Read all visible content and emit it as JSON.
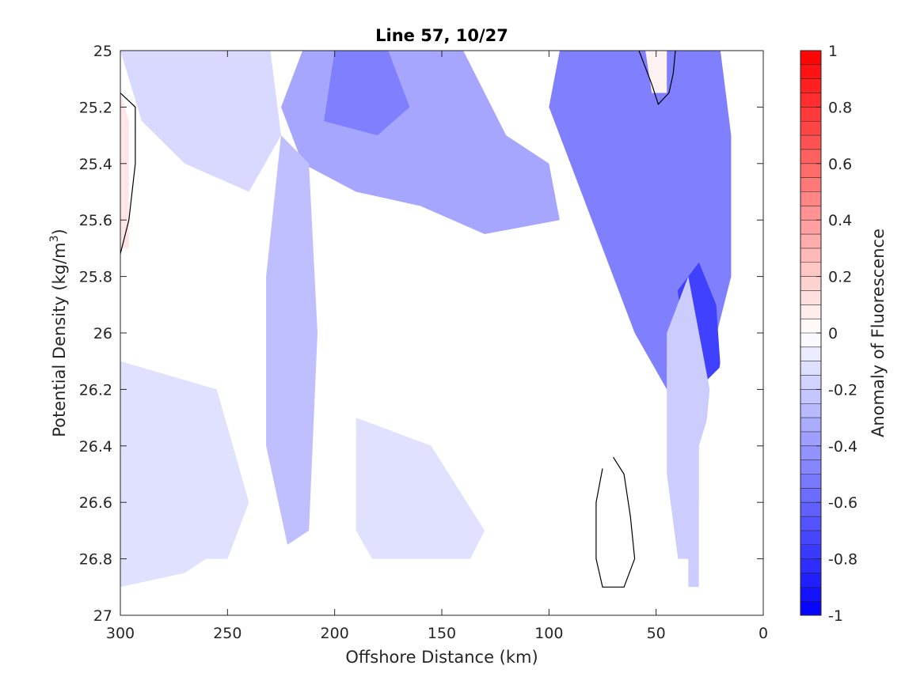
{
  "chart_data": {
    "type": "heatmap",
    "title": "Line 57, 10/27",
    "xlabel": "Offshore Distance (km)",
    "ylabel": "Potential Density (kg/m",
    "ylabel_sup": "3",
    "ylabel_close": ")",
    "colorbar_label": "Anomaly of Fluorescence",
    "xlim": [
      300,
      0
    ],
    "ylim": [
      25,
      27
    ],
    "x_reversed": true,
    "y_reversed": true,
    "x_ticks": [
      300,
      250,
      200,
      150,
      100,
      50,
      0
    ],
    "x_tick_labels": [
      "300",
      "250",
      "200",
      "150",
      "100",
      "50",
      "0"
    ],
    "y_ticks": [
      25,
      25.2,
      25.4,
      25.6,
      25.8,
      26,
      26.2,
      26.4,
      26.6,
      26.8,
      27
    ],
    "y_tick_labels": [
      "25",
      "25.2",
      "25.4",
      "25.6",
      "25.8",
      "26",
      "26.2",
      "26.4",
      "26.6",
      "26.8",
      "27"
    ],
    "colorbar_range": [
      -1,
      1
    ],
    "colorbar_levels": 40,
    "colorbar_ticks": [
      1,
      0.8,
      0.6,
      0.4,
      0.2,
      0,
      -0.2,
      -0.4,
      -0.6,
      -0.8,
      -1
    ],
    "colorbar_tick_labels": [
      "1",
      "0.8",
      "0.6",
      "0.4",
      "0.2",
      "0",
      "-0.2",
      "-0.4",
      "-0.6",
      "-0.8",
      "-1"
    ],
    "colors": {
      "negative": "#0000ff",
      "positive": "#ff0000",
      "zero": "#ffffff",
      "contour": "#000000"
    },
    "grid": false,
    "contour_level": 0,
    "regions": [
      {
        "name": "nearshore-deep-blue",
        "value": -0.5,
        "points": [
          [
            95,
            25
          ],
          [
            20,
            25
          ],
          [
            15,
            25.3
          ],
          [
            15,
            25.8
          ],
          [
            25,
            26.1
          ],
          [
            45,
            26.2
          ],
          [
            60,
            26
          ],
          [
            75,
            25.7
          ],
          [
            90,
            25.4
          ],
          [
            100,
            25.2
          ]
        ]
      },
      {
        "name": "nearshore-core",
        "value": -0.75,
        "points": [
          [
            40,
            25.85
          ],
          [
            30,
            25.75
          ],
          [
            22,
            25.9
          ],
          [
            20,
            26.12
          ],
          [
            28,
            26.18
          ],
          [
            36,
            26.05
          ]
        ]
      },
      {
        "name": "midshelf-band",
        "value": -0.35,
        "points": [
          [
            215,
            25
          ],
          [
            140,
            25
          ],
          [
            120,
            25.3
          ],
          [
            100,
            25.4
          ],
          [
            95,
            25.6
          ],
          [
            130,
            25.65
          ],
          [
            160,
            25.55
          ],
          [
            190,
            25.5
          ],
          [
            215,
            25.4
          ],
          [
            225,
            25.2
          ]
        ]
      },
      {
        "name": "midshelf-core",
        "value": -0.5,
        "points": [
          [
            200,
            25
          ],
          [
            175,
            25
          ],
          [
            165,
            25.2
          ],
          [
            180,
            25.3
          ],
          [
            205,
            25.25
          ]
        ]
      },
      {
        "name": "offshore-column",
        "value": -0.25,
        "points": [
          [
            225,
            25.3
          ],
          [
            212,
            25.4
          ],
          [
            208,
            26
          ],
          [
            212,
            26.7
          ],
          [
            222,
            26.75
          ],
          [
            232,
            26.4
          ],
          [
            232,
            25.8
          ]
        ]
      },
      {
        "name": "surface-ring-offshore",
        "value": -0.15,
        "points": [
          [
            300,
            25
          ],
          [
            230,
            25
          ],
          [
            225,
            25.3
          ],
          [
            240,
            25.5
          ],
          [
            270,
            25.4
          ],
          [
            290,
            25.25
          ]
        ]
      },
      {
        "name": "deep-band",
        "value": -0.12,
        "points": [
          [
            300,
            26.1
          ],
          [
            255,
            26.2
          ],
          [
            240,
            26.6
          ],
          [
            250,
            26.8
          ],
          [
            260,
            26.8
          ],
          [
            270,
            26.85
          ],
          [
            300,
            26.9
          ]
        ]
      },
      {
        "name": "deep-band-inner",
        "value": -0.12,
        "points": [
          [
            190,
            26.3
          ],
          [
            155,
            26.4
          ],
          [
            130,
            26.7
          ],
          [
            140,
            26.85
          ],
          [
            175,
            26.9
          ],
          [
            190,
            26.7
          ]
        ]
      },
      {
        "name": "inshore-wall",
        "value": -0.2,
        "points": [
          [
            35,
            25.8
          ],
          [
            25,
            26.2
          ],
          [
            30,
            26.6
          ],
          [
            30,
            26.9
          ],
          [
            38,
            26.9
          ],
          [
            45,
            26.5
          ],
          [
            45,
            26
          ]
        ]
      },
      {
        "name": "surface-positive",
        "value": 0.05,
        "points": [
          [
            55,
            25
          ],
          [
            45,
            25
          ],
          [
            45,
            25.15
          ],
          [
            52,
            25.15
          ]
        ]
      },
      {
        "name": "edge-positive",
        "value": 0.1,
        "points": [
          [
            300,
            25.15
          ],
          [
            296,
            25.25
          ],
          [
            296,
            25.7
          ],
          [
            300,
            25.7
          ]
        ]
      }
    ],
    "blank_regions": [
      {
        "name": "deep-nodata-left",
        "points": [
          [
            300,
            26.9
          ],
          [
            300,
            27
          ],
          [
            0,
            27
          ],
          [
            0,
            26.9
          ],
          [
            35,
            26.9
          ],
          [
            35,
            26.8
          ],
          [
            260,
            26.8
          ],
          [
            265,
            26.9
          ]
        ]
      },
      {
        "name": "nearshore-nodata",
        "points": [
          [
            15,
            25
          ],
          [
            0,
            25
          ],
          [
            0,
            26.9
          ],
          [
            30,
            26.9
          ],
          [
            30,
            26.4
          ],
          [
            22,
            26.2
          ],
          [
            20,
            26.1
          ],
          [
            5,
            26.1
          ],
          [
            5,
            25.7
          ],
          [
            0,
            25.6
          ],
          [
            0,
            25.35
          ],
          [
            10,
            25.25
          ]
        ]
      }
    ],
    "contours": [
      {
        "name": "zero-contour-left",
        "points": [
          [
            300,
            25.15
          ],
          [
            293,
            25.2
          ],
          [
            293,
            25.4
          ],
          [
            296,
            25.6
          ],
          [
            300,
            25.72
          ]
        ]
      },
      {
        "name": "zero-contour-surface",
        "points": [
          [
            58,
            25
          ],
          [
            52,
            25.12
          ],
          [
            49,
            25.19
          ],
          [
            44,
            25.15
          ],
          [
            42,
            25.08
          ],
          [
            41,
            25
          ]
        ]
      },
      {
        "name": "zero-contour-deep",
        "points": [
          [
            70,
            26.44
          ],
          [
            65,
            26.5
          ],
          [
            62,
            26.65
          ],
          [
            60,
            26.8
          ],
          [
            65,
            26.9
          ],
          [
            75,
            26.9
          ],
          [
            78,
            26.8
          ],
          [
            78,
            26.6
          ],
          [
            75,
            26.48
          ]
        ]
      }
    ]
  }
}
